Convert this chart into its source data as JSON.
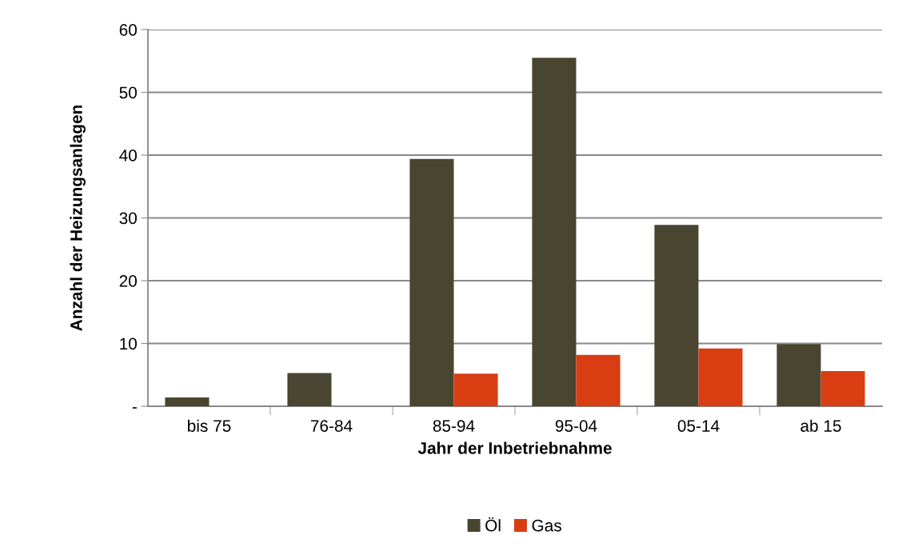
{
  "chart_data": {
    "type": "bar",
    "categories": [
      "bis 75",
      "76-84",
      "85-94",
      "95-04",
      "05-14",
      "ab 15"
    ],
    "series": [
      {
        "name": "Öl",
        "color": "#4a4530",
        "values": [
          1.4,
          5.3,
          39.4,
          55.5,
          28.9,
          9.9
        ]
      },
      {
        "name": "Gas",
        "color": "#d93d12",
        "values": [
          0,
          0,
          5.2,
          8.2,
          9.2,
          5.6
        ]
      }
    ],
    "xlabel": "Jahr der Inbetriebnahme",
    "ylabel": "Anzahl der Heizungsanlagen",
    "ylim": [
      0,
      60
    ],
    "yticks": [
      {
        "value": 0,
        "label": "-"
      },
      10,
      20,
      30,
      40,
      50,
      60
    ],
    "grid": "y",
    "legend": "bottom"
  }
}
